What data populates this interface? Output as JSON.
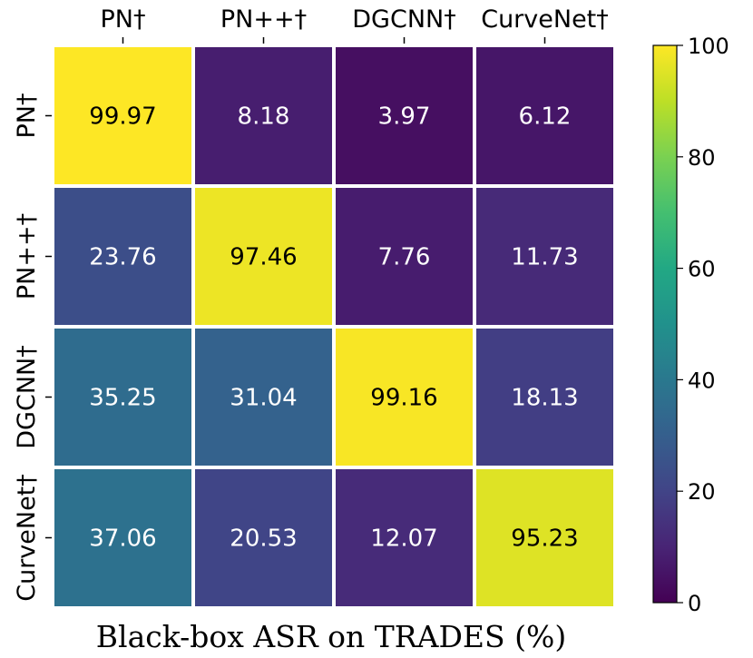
{
  "chart_data": {
    "type": "heatmap",
    "xlabel": "Black-box ASR on TRADES (%)",
    "columns": [
      "PN†",
      "PN++†",
      "DGCNN†",
      "CurveNet†"
    ],
    "rows": [
      "PN†",
      "PN++†",
      "DGCNN†",
      "CurveNet†"
    ],
    "values": [
      [
        99.97,
        8.18,
        3.97,
        6.12
      ],
      [
        23.76,
        97.46,
        7.76,
        11.73
      ],
      [
        35.25,
        31.04,
        99.16,
        18.13
      ],
      [
        37.06,
        20.53,
        12.07,
        95.23
      ]
    ],
    "value_labels": [
      [
        "99.97",
        "8.18",
        "3.97",
        "6.12"
      ],
      [
        "23.76",
        "97.46",
        "7.76",
        "11.73"
      ],
      [
        "35.25",
        "31.04",
        "99.16",
        "18.13"
      ],
      [
        "37.06",
        "20.53",
        "12.07",
        "95.23"
      ]
    ],
    "colormap": "viridis",
    "vmin": 0,
    "vmax": 100,
    "colorbar_ticks": [
      "0",
      "20",
      "40",
      "60",
      "80",
      "100"
    ],
    "colorbar_tick_values": [
      0,
      20,
      40,
      60,
      80,
      100
    ]
  }
}
